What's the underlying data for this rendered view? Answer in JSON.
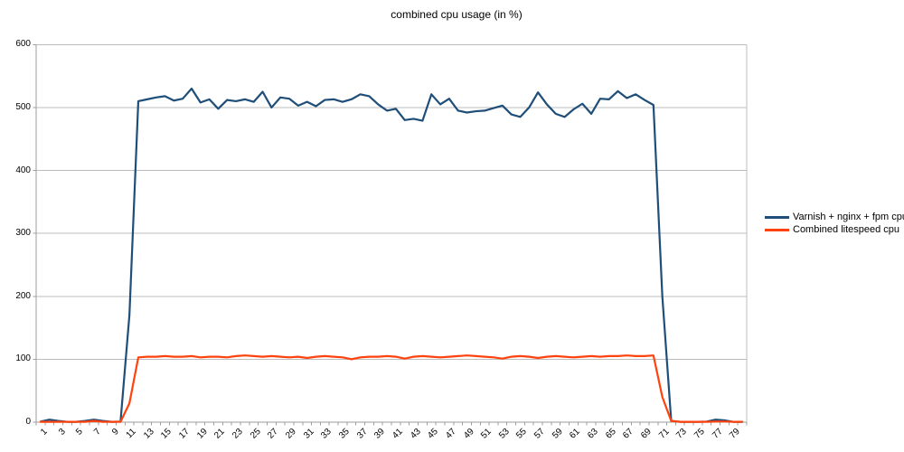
{
  "chart_data": {
    "type": "line",
    "title": "combined cpu usage (in %)",
    "xlabel": "",
    "ylabel": "",
    "ylim": [
      0,
      600
    ],
    "y_tick_step": 100,
    "y_tick_labels": [
      0,
      100,
      200,
      300,
      400,
      500,
      600
    ],
    "x_range": [
      1,
      80
    ],
    "x_tick_labels": [
      1,
      3,
      5,
      7,
      9,
      11,
      13,
      15,
      17,
      19,
      21,
      23,
      25,
      27,
      29,
      31,
      33,
      35,
      37,
      39,
      41,
      43,
      45,
      47,
      49,
      51,
      53,
      55,
      57,
      59,
      61,
      63,
      65,
      67,
      69,
      71,
      73,
      75,
      77,
      79
    ],
    "grid": "horizontal",
    "legend_position": "right",
    "series": [
      {
        "name": "Varnish + nginx + fpm cpu",
        "color": "#1f4e79",
        "values": [
          1,
          4,
          2,
          0.5,
          0.5,
          2,
          4,
          2,
          0.5,
          1,
          170,
          510,
          513,
          516,
          518,
          511,
          514,
          530,
          508,
          513,
          498,
          512,
          510,
          513,
          509,
          525,
          500,
          516,
          514,
          503,
          509,
          502,
          512,
          513,
          509,
          513,
          521,
          518,
          505,
          495,
          498,
          480,
          482,
          479,
          521,
          505,
          514,
          495,
          492,
          494,
          495,
          499,
          503,
          489,
          485,
          500,
          524,
          505,
          490,
          485,
          497,
          506,
          490,
          514,
          513,
          526,
          515,
          521,
          512,
          504,
          200,
          2,
          0.5,
          0.5,
          0.5,
          1,
          4,
          3,
          0.5,
          0.5
        ]
      },
      {
        "name": "Combined litespeed cpu",
        "color": "#ff420e",
        "values": [
          0.5,
          0.5,
          0.5,
          0.5,
          0.5,
          0.5,
          2,
          0.5,
          0.5,
          0.5,
          30,
          103,
          104,
          104,
          105,
          104,
          104,
          105,
          103,
          104,
          104,
          103,
          105,
          106,
          105,
          104,
          105,
          104,
          103,
          104,
          102,
          104,
          105,
          104,
          103,
          100,
          103,
          104,
          104,
          105,
          104,
          101,
          104,
          105,
          104,
          103,
          104,
          105,
          106,
          105,
          104,
          103,
          101,
          104,
          105,
          104,
          102,
          104,
          105,
          104,
          103,
          104,
          105,
          104,
          105,
          105,
          106,
          105,
          105,
          106,
          40,
          2,
          0.5,
          0.5,
          0.5,
          0.5,
          1,
          1,
          0.5,
          0.5
        ]
      }
    ],
    "colors": {
      "gridline": "#bcbcbc",
      "axis": "#9e9e9e",
      "text": "#000000",
      "background": "#ffffff"
    }
  }
}
